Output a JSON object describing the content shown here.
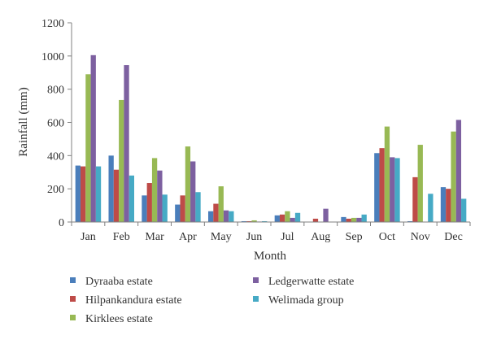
{
  "chart_data": {
    "type": "bar",
    "title": "",
    "xlabel": "Month",
    "ylabel": "Rainfall (mm)",
    "ylim": [
      0,
      1200
    ],
    "yticks": [
      0,
      200,
      400,
      600,
      800,
      1000,
      1200
    ],
    "grid": false,
    "legend_position": "bottom",
    "categories": [
      "Jan",
      "Feb",
      "Mar",
      "Apr",
      "May",
      "Jun",
      "Jul",
      "Aug",
      "Sep",
      "Oct",
      "Nov",
      "Dec"
    ],
    "series": [
      {
        "name": "Dyraaba estate",
        "color": "#4a7ebb",
        "values": [
          340,
          400,
          160,
          105,
          65,
          5,
          40,
          2,
          30,
          415,
          5,
          210
        ]
      },
      {
        "name": "Hilpankandura estate",
        "color": "#be4b48",
        "values": [
          335,
          315,
          235,
          160,
          110,
          5,
          45,
          20,
          20,
          445,
          270,
          200
        ]
      },
      {
        "name": "Kirklees estate",
        "color": "#98b954",
        "values": [
          890,
          735,
          385,
          455,
          215,
          10,
          65,
          2,
          25,
          575,
          465,
          545
        ]
      },
      {
        "name": "Ledgerwatte estate",
        "color": "#7d60a0",
        "values": [
          1005,
          945,
          310,
          365,
          70,
          3,
          25,
          80,
          25,
          390,
          2,
          615
        ]
      },
      {
        "name": "Welimada group",
        "color": "#46aac5",
        "values": [
          335,
          280,
          165,
          180,
          65,
          5,
          55,
          2,
          45,
          385,
          170,
          140
        ]
      }
    ]
  }
}
